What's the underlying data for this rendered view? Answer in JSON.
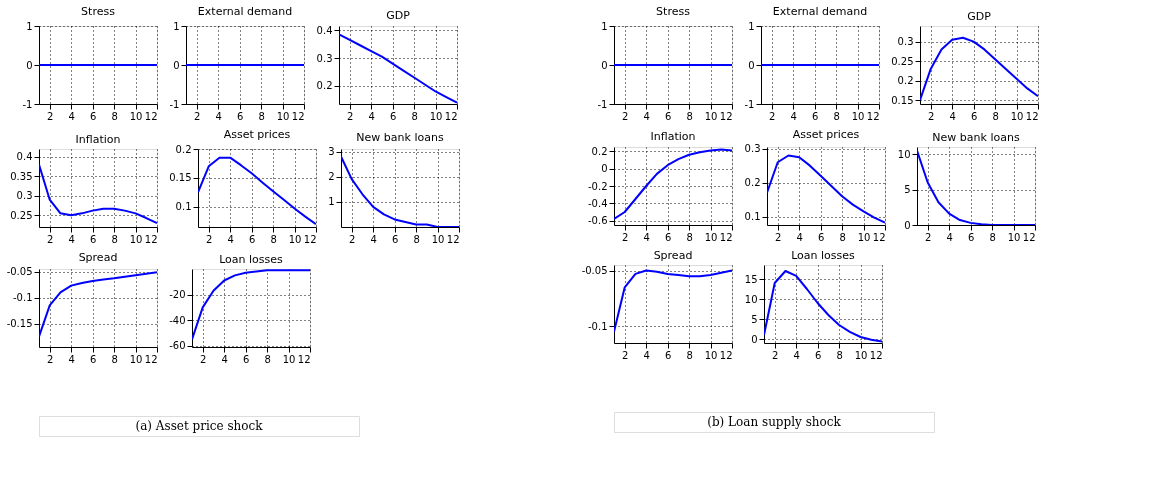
{
  "chart_data": [
    {
      "type": "line",
      "title": "Stress",
      "x": [
        1,
        2,
        3,
        4,
        5,
        6,
        7,
        8,
        9,
        10,
        11,
        12
      ],
      "series": [
        {
          "color": "#0000ff",
          "values": [
            0,
            0,
            0,
            0,
            0,
            0,
            0,
            0,
            0,
            0,
            0,
            0
          ]
        }
      ],
      "xlim": [
        1,
        12
      ],
      "xticks": [
        2,
        4,
        6,
        8,
        10,
        12
      ],
      "ylim": [
        -1,
        1
      ],
      "yticks": [
        -1,
        0,
        1
      ],
      "grid": true,
      "annotations": [
        "(a)  Asset price shock"
      ]
    },
    {
      "type": "line",
      "title": "External demand",
      "x": [
        1,
        2,
        3,
        4,
        5,
        6,
        7,
        8,
        9,
        10,
        11,
        12
      ],
      "series": [
        {
          "color": "#0000ff",
          "values": [
            0,
            0,
            0,
            0,
            0,
            0,
            0,
            0,
            0,
            0,
            0,
            0
          ]
        }
      ],
      "xlim": [
        1,
        12
      ],
      "xticks": [
        2,
        4,
        6,
        8,
        10,
        12
      ],
      "ylim": [
        -1,
        1
      ],
      "yticks": [
        -1,
        0,
        1
      ],
      "grid": true
    },
    {
      "type": "line",
      "title": "GDP",
      "x": [
        1,
        2,
        3,
        4,
        5,
        6,
        7,
        8,
        9,
        10,
        11,
        12
      ],
      "series": [
        {
          "color": "#0000ff",
          "values": [
            0.385,
            0.365,
            0.345,
            0.325,
            0.305,
            0.28,
            0.255,
            0.23,
            0.205,
            0.18,
            0.16,
            0.14
          ]
        }
      ],
      "xlim": [
        1,
        12
      ],
      "xticks": [
        2,
        4,
        6,
        8,
        10,
        12
      ],
      "ylim": [
        0.135,
        0.415
      ],
      "yticks": [
        0.2,
        0.3,
        0.4
      ],
      "grid": true
    },
    {
      "type": "line",
      "title": "Inflation",
      "x": [
        1,
        2,
        3,
        4,
        5,
        6,
        7,
        8,
        9,
        10,
        11,
        12
      ],
      "series": [
        {
          "color": "#0000ff",
          "values": [
            0.38,
            0.29,
            0.255,
            0.25,
            0.255,
            0.262,
            0.267,
            0.267,
            0.262,
            0.255,
            0.243,
            0.23
          ]
        }
      ],
      "xlim": [
        1,
        12
      ],
      "xticks": [
        2,
        4,
        6,
        8,
        10,
        12
      ],
      "ylim": [
        0.22,
        0.42
      ],
      "yticks": [
        0.25,
        0.3,
        0.35,
        0.4
      ],
      "grid": true
    },
    {
      "type": "line",
      "title": "Asset prices",
      "x": [
        1,
        2,
        3,
        4,
        5,
        6,
        7,
        8,
        9,
        10,
        11,
        12
      ],
      "series": [
        {
          "color": "#0000ff",
          "values": [
            0.125,
            0.17,
            0.185,
            0.185,
            0.172,
            0.158,
            0.142,
            0.127,
            0.112,
            0.097,
            0.083,
            0.07
          ]
        }
      ],
      "xlim": [
        1,
        12
      ],
      "xticks": [
        2,
        4,
        6,
        8,
        10,
        12
      ],
      "ylim": [
        0.065,
        0.2
      ],
      "yticks": [
        0.1,
        0.15,
        0.2
      ],
      "grid": true
    },
    {
      "type": "line",
      "title": "New bank loans",
      "x": [
        1,
        2,
        3,
        4,
        5,
        6,
        7,
        8,
        9,
        10,
        11,
        12
      ],
      "series": [
        {
          "color": "#0000ff",
          "values": [
            2.8,
            1.9,
            1.3,
            0.8,
            0.5,
            0.3,
            0.2,
            0.1,
            0.1,
            0,
            0,
            0
          ]
        }
      ],
      "xlim": [
        1,
        12
      ],
      "xticks": [
        2,
        4,
        6,
        8,
        10,
        12
      ],
      "ylim": [
        0,
        3.1
      ],
      "yticks": [
        1,
        2,
        3
      ],
      "grid": true
    },
    {
      "type": "line",
      "title": "Spread",
      "x": [
        1,
        2,
        3,
        4,
        5,
        6,
        7,
        8,
        9,
        10,
        11,
        12
      ],
      "series": [
        {
          "color": "#0000ff",
          "values": [
            -0.175,
            -0.115,
            -0.09,
            -0.077,
            -0.072,
            -0.068,
            -0.065,
            -0.063,
            -0.06,
            -0.057,
            -0.054,
            -0.051
          ]
        }
      ],
      "xlim": [
        1,
        12
      ],
      "xticks": [
        2,
        4,
        6,
        8,
        10,
        12
      ],
      "ylim": [
        -0.195,
        -0.045
      ],
      "yticks": [
        -0.15,
        -0.1,
        -0.05
      ],
      "grid": true
    },
    {
      "type": "line",
      "title": "Loan losses",
      "x": [
        1,
        2,
        3,
        4,
        5,
        6,
        7,
        8,
        9,
        10,
        11,
        12
      ],
      "series": [
        {
          "color": "#0000ff",
          "values": [
            -55,
            -30,
            -17,
            -9,
            -5,
            -3,
            -2,
            -1,
            -1,
            -1,
            -1,
            -1
          ]
        }
      ],
      "xlim": [
        1,
        12
      ],
      "xticks": [
        2,
        4,
        6,
        8,
        10,
        12
      ],
      "ylim": [
        -61,
        0
      ],
      "yticks": [
        -60,
        -40,
        -20
      ],
      "grid": true
    },
    {
      "type": "line",
      "title": "Stress",
      "x": [
        1,
        2,
        3,
        4,
        5,
        6,
        7,
        8,
        9,
        10,
        11,
        12
      ],
      "series": [
        {
          "color": "#0000ff",
          "values": [
            0,
            0,
            0,
            0,
            0,
            0,
            0,
            0,
            0,
            0,
            0,
            0
          ]
        }
      ],
      "xlim": [
        1,
        12
      ],
      "xticks": [
        2,
        4,
        6,
        8,
        10,
        12
      ],
      "ylim": [
        -1,
        1
      ],
      "yticks": [
        -1,
        0,
        1
      ],
      "grid": true,
      "annotations": [
        "(b)  Loan supply shock"
      ]
    },
    {
      "type": "line",
      "title": "External demand",
      "x": [
        1,
        2,
        3,
        4,
        5,
        6,
        7,
        8,
        9,
        10,
        11,
        12
      ],
      "series": [
        {
          "color": "#0000ff",
          "values": [
            0,
            0,
            0,
            0,
            0,
            0,
            0,
            0,
            0,
            0,
            0,
            0
          ]
        }
      ],
      "xlim": [
        1,
        12
      ],
      "xticks": [
        2,
        4,
        6,
        8,
        10,
        12
      ],
      "ylim": [
        -1,
        1
      ],
      "yticks": [
        -1,
        0,
        1
      ],
      "grid": true
    },
    {
      "type": "line",
      "title": "GDP",
      "x": [
        1,
        2,
        3,
        4,
        5,
        6,
        7,
        8,
        9,
        10,
        11,
        12
      ],
      "series": [
        {
          "color": "#0000ff",
          "values": [
            0.15,
            0.23,
            0.28,
            0.305,
            0.31,
            0.3,
            0.28,
            0.255,
            0.23,
            0.205,
            0.18,
            0.16
          ]
        }
      ],
      "xlim": [
        1,
        12
      ],
      "xticks": [
        2,
        4,
        6,
        8,
        10,
        12
      ],
      "ylim": [
        0.14,
        0.34
      ],
      "yticks": [
        0.15,
        0.2,
        0.25,
        0.3
      ],
      "grid": true
    },
    {
      "type": "line",
      "title": "Inflation",
      "x": [
        1,
        2,
        3,
        4,
        5,
        6,
        7,
        8,
        9,
        10,
        11,
        12
      ],
      "series": [
        {
          "color": "#0000ff",
          "values": [
            -0.58,
            -0.5,
            -0.35,
            -0.2,
            -0.06,
            0.04,
            0.11,
            0.16,
            0.19,
            0.21,
            0.22,
            0.21
          ]
        }
      ],
      "xlim": [
        1,
        12
      ],
      "xticks": [
        2,
        4,
        6,
        8,
        10,
        12
      ],
      "ylim": [
        -0.65,
        0.25
      ],
      "yticks": [
        -0.6,
        -0.4,
        -0.2,
        0,
        0.2
      ],
      "grid": true
    },
    {
      "type": "line",
      "title": "Asset prices",
      "x": [
        1,
        2,
        3,
        4,
        5,
        6,
        7,
        8,
        9,
        10,
        11,
        12
      ],
      "series": [
        {
          "color": "#0000ff",
          "values": [
            0.17,
            0.26,
            0.28,
            0.275,
            0.25,
            0.22,
            0.19,
            0.16,
            0.135,
            0.115,
            0.097,
            0.082
          ]
        }
      ],
      "xlim": [
        1,
        12
      ],
      "xticks": [
        2,
        4,
        6,
        8,
        10,
        12
      ],
      "ylim": [
        0.075,
        0.305
      ],
      "yticks": [
        0.1,
        0.2,
        0.3
      ],
      "grid": true
    },
    {
      "type": "line",
      "title": "New bank loans",
      "x": [
        1,
        2,
        3,
        4,
        5,
        6,
        7,
        8,
        9,
        10,
        11,
        12
      ],
      "series": [
        {
          "color": "#0000ff",
          "values": [
            10.5,
            6,
            3.2,
            1.6,
            0.7,
            0.3,
            0.1,
            0,
            0,
            0,
            0,
            0
          ]
        }
      ],
      "xlim": [
        1,
        12
      ],
      "xticks": [
        2,
        4,
        6,
        8,
        10,
        12
      ],
      "ylim": [
        0,
        11
      ],
      "yticks": [
        0,
        5,
        10
      ],
      "grid": true
    },
    {
      "type": "line",
      "title": "Spread",
      "x": [
        1,
        2,
        3,
        4,
        5,
        6,
        7,
        8,
        9,
        10,
        11,
        12
      ],
      "series": [
        {
          "color": "#0000ff",
          "values": [
            -0.105,
            -0.065,
            -0.053,
            -0.05,
            -0.051,
            -0.053,
            -0.054,
            -0.055,
            -0.055,
            -0.054,
            -0.052,
            -0.05
          ]
        }
      ],
      "xlim": [
        1,
        12
      ],
      "xticks": [
        2,
        4,
        6,
        8,
        10,
        12
      ],
      "ylim": [
        -0.115,
        -0.045
      ],
      "yticks": [
        -0.1,
        -0.05
      ],
      "grid": true
    },
    {
      "type": "line",
      "title": "Loan losses",
      "x": [
        1,
        2,
        3,
        4,
        5,
        6,
        7,
        8,
        9,
        10,
        11,
        12
      ],
      "series": [
        {
          "color": "#0000ff",
          "values": [
            1,
            14,
            17,
            15.8,
            12.5,
            9,
            6,
            3.5,
            1.8,
            0.5,
            -0.2,
            -0.6
          ]
        }
      ],
      "xlim": [
        1,
        12
      ],
      "xticks": [
        2,
        4,
        6,
        8,
        10,
        12
      ],
      "ylim": [
        -1,
        18.5
      ],
      "yticks": [
        0,
        5,
        10,
        15
      ],
      "grid": true
    }
  ]
}
